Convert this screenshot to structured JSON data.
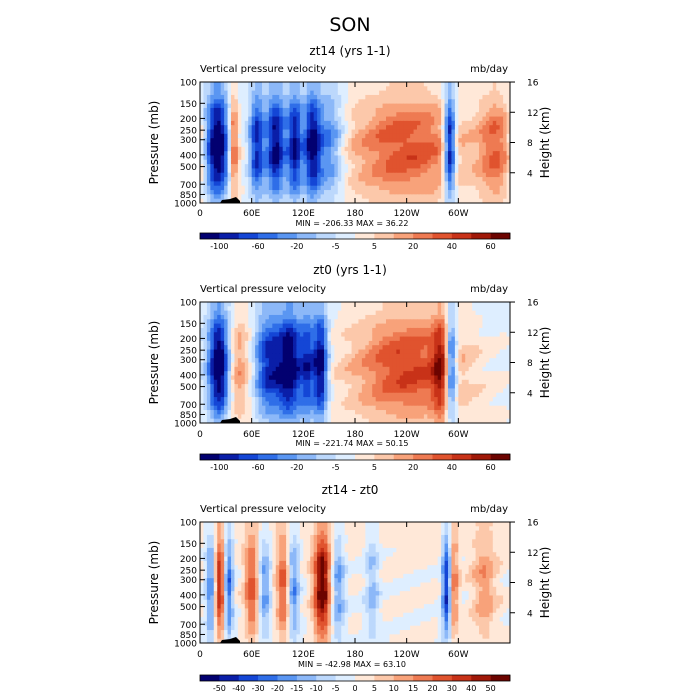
{
  "figure_title": "SON",
  "chart_data": [
    {
      "type": "heatmap",
      "title": "zt14 (yrs 1-1)",
      "subtitle_left": "Vertical pressure velocity",
      "subtitle_right": "mb/day",
      "ylabel": "Pressure (mb)",
      "ylabel_right": "Height (km)",
      "x_ticks": [
        "0",
        "60E",
        "120E",
        "180",
        "120W",
        "60W"
      ],
      "y_ticks": [
        "100",
        "150",
        "200",
        "250",
        "300",
        "400",
        "500",
        "700",
        "850",
        "1000"
      ],
      "y_ticks_right": [
        "16",
        "12",
        "8",
        "4"
      ],
      "x_range": [
        0,
        360
      ],
      "y_range": [
        100,
        1000
      ],
      "y_scale": "log",
      "stats": "MIN = -206.33   MAX =  36.22",
      "colorbar_labels": [
        "-100",
        "-60",
        "-20",
        "-5",
        "5",
        "20",
        "40",
        "60"
      ],
      "colorbar_colors": [
        "#020070",
        "#0a1ea8",
        "#1446d6",
        "#2f6ee8",
        "#5a96f2",
        "#8cb8f8",
        "#bcd8fc",
        "#deeeff",
        "#ffe8d8",
        "#fcc8aa",
        "#f8a27a",
        "#ee7a52",
        "#e0532e",
        "#c83218",
        "#a01808",
        "#6c0400"
      ],
      "features": [
        {
          "lon": 20,
          "width": 10,
          "strength": -1.0
        },
        {
          "lon": 66,
          "width": 6,
          "strength": -0.7
        },
        {
          "lon": 88,
          "width": 8,
          "strength": -0.85
        },
        {
          "lon": 110,
          "width": 6,
          "strength": -0.8
        },
        {
          "lon": 130,
          "width": 7,
          "strength": -0.8
        },
        {
          "lon": 150,
          "width": 12,
          "strength": -0.5
        },
        {
          "lon": 240,
          "width": 48,
          "strength": 0.55
        },
        {
          "lon": 290,
          "width": 5,
          "strength": -1.0
        },
        {
          "lon": 343,
          "width": 14,
          "strength": 0.45
        },
        {
          "lon": 39,
          "width": 4,
          "strength": 0.6
        }
      ]
    },
    {
      "type": "heatmap",
      "title": "zt0 (yrs 1-1)",
      "subtitle_left": "Vertical pressure velocity",
      "subtitle_right": "mb/day",
      "ylabel": "Pressure (mb)",
      "ylabel_right": "Height (km)",
      "x_ticks": [
        "0",
        "60E",
        "120E",
        "180",
        "120W",
        "60W"
      ],
      "y_ticks": [
        "100",
        "150",
        "200",
        "250",
        "300",
        "400",
        "500",
        "700",
        "850",
        "1000"
      ],
      "y_ticks_right": [
        "16",
        "12",
        "8",
        "4"
      ],
      "x_range": [
        0,
        360
      ],
      "y_range": [
        100,
        1000
      ],
      "y_scale": "log",
      "stats": "MIN = -221.74   MAX =  50.15",
      "colorbar_labels": [
        "-100",
        "-60",
        "-20",
        "-5",
        "5",
        "20",
        "40",
        "60"
      ],
      "colorbar_colors": [
        "#020070",
        "#0a1ea8",
        "#1446d6",
        "#2f6ee8",
        "#5a96f2",
        "#8cb8f8",
        "#bcd8fc",
        "#deeeff",
        "#ffe8d8",
        "#fcc8aa",
        "#f8a27a",
        "#ee7a52",
        "#e0532e",
        "#c83218",
        "#a01808",
        "#6c0400"
      ],
      "features": [
        {
          "lon": 22,
          "width": 9,
          "strength": -1.0
        },
        {
          "lon": 45,
          "width": 10,
          "strength": 0.35
        },
        {
          "lon": 80,
          "width": 12,
          "strength": -0.7
        },
        {
          "lon": 105,
          "width": 10,
          "strength": -0.9
        },
        {
          "lon": 140,
          "width": 6,
          "strength": -0.9
        },
        {
          "lon": 125,
          "width": 6,
          "strength": -0.6
        },
        {
          "lon": 240,
          "width": 45,
          "strength": 0.6
        },
        {
          "lon": 291,
          "width": 5,
          "strength": -1.0
        },
        {
          "lon": 282,
          "width": 8,
          "strength": 0.55
        }
      ]
    },
    {
      "type": "heatmap",
      "title": "zt14 - zt0",
      "subtitle_left": "Vertical pressure velocity",
      "subtitle_right": "mb/day",
      "ylabel": "Pressure (mb)",
      "ylabel_right": "Height (km)",
      "x_ticks": [
        "0",
        "60E",
        "120E",
        "180",
        "120W",
        "60W"
      ],
      "y_ticks": [
        "100",
        "150",
        "200",
        "250",
        "300",
        "400",
        "500",
        "700",
        "850",
        "1000"
      ],
      "y_ticks_right": [
        "16",
        "12",
        "8",
        "4"
      ],
      "x_range": [
        0,
        360
      ],
      "y_range": [
        100,
        1000
      ],
      "y_scale": "log",
      "stats": "MIN = -42.98   MAX =  63.10",
      "colorbar_labels": [
        "-50",
        "-40",
        "-30",
        "-20",
        "-15",
        "-10",
        "-5",
        "0",
        "5",
        "10",
        "15",
        "20",
        "30",
        "40",
        "50"
      ],
      "colorbar_colors": [
        "#020070",
        "#0a1ea8",
        "#1446d6",
        "#2f6ee8",
        "#5a96f2",
        "#8cb8f8",
        "#bcd8fc",
        "#deeeff",
        "#ffe8d8",
        "#fcc8aa",
        "#f8a27a",
        "#ee7a52",
        "#e0532e",
        "#c83218",
        "#a01808",
        "#6c0400"
      ],
      "features": [
        {
          "lon": 14,
          "width": 5,
          "strength": -0.6
        },
        {
          "lon": 22,
          "width": 5,
          "strength": 0.8
        },
        {
          "lon": 33,
          "width": 4,
          "strength": -0.6
        },
        {
          "lon": 60,
          "width": 6,
          "strength": 0.5
        },
        {
          "lon": 75,
          "width": 5,
          "strength": -0.4
        },
        {
          "lon": 97,
          "width": 6,
          "strength": 0.5
        },
        {
          "lon": 108,
          "width": 5,
          "strength": -0.5
        },
        {
          "lon": 142,
          "width": 7,
          "strength": 0.9
        },
        {
          "lon": 160,
          "width": 6,
          "strength": -0.4
        },
        {
          "lon": 200,
          "width": 6,
          "strength": -0.3
        },
        {
          "lon": 287,
          "width": 4,
          "strength": -0.8
        },
        {
          "lon": 294,
          "width": 4,
          "strength": 0.5
        },
        {
          "lon": 330,
          "width": 10,
          "strength": 0.3
        }
      ]
    }
  ]
}
